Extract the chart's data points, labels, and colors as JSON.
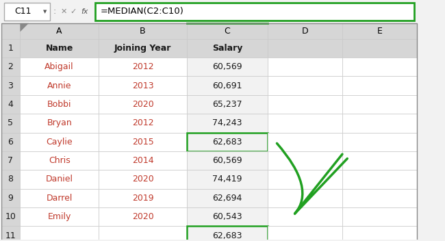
{
  "formula_bar_cell": "C11",
  "formula_bar_formula": "=MEDIAN(C2:C10)",
  "col_letters": [
    "",
    "A",
    "B",
    "C",
    "D",
    "E"
  ],
  "rows": [
    [
      "1",
      "Name",
      "Joining Year",
      "Salary",
      "",
      ""
    ],
    [
      "2",
      "Abigail",
      "2012",
      "60,569",
      "",
      ""
    ],
    [
      "3",
      "Annie",
      "2013",
      "60,691",
      "",
      ""
    ],
    [
      "4",
      "Bobbi",
      "2020",
      "65,237",
      "",
      ""
    ],
    [
      "5",
      "Bryan",
      "2012",
      "74,243",
      "",
      ""
    ],
    [
      "6",
      "Caylie",
      "2015",
      "62,683",
      "",
      ""
    ],
    [
      "7",
      "Chris",
      "2014",
      "60,569",
      "",
      ""
    ],
    [
      "8",
      "Daniel",
      "2020",
      "74,419",
      "",
      ""
    ],
    [
      "9",
      "Darrel",
      "2019",
      "62,694",
      "",
      ""
    ],
    [
      "10",
      "Emily",
      "2020",
      "60,543",
      "",
      ""
    ],
    [
      "11",
      "",
      "",
      "62,683",
      "",
      ""
    ]
  ],
  "bg_white": "#ffffff",
  "bg_gray": "#f2f2f2",
  "bg_col_selected": "#d6d6d6",
  "bg_header_row": "#d6d6d6",
  "grid_light": "#c8c8c8",
  "grid_dark": "#888888",
  "green": "#21a021",
  "text_dark": "#1a1a1a",
  "text_red": "#c0392b",
  "formula_bar_bg": "#f2f2f2",
  "white": "#ffffff"
}
